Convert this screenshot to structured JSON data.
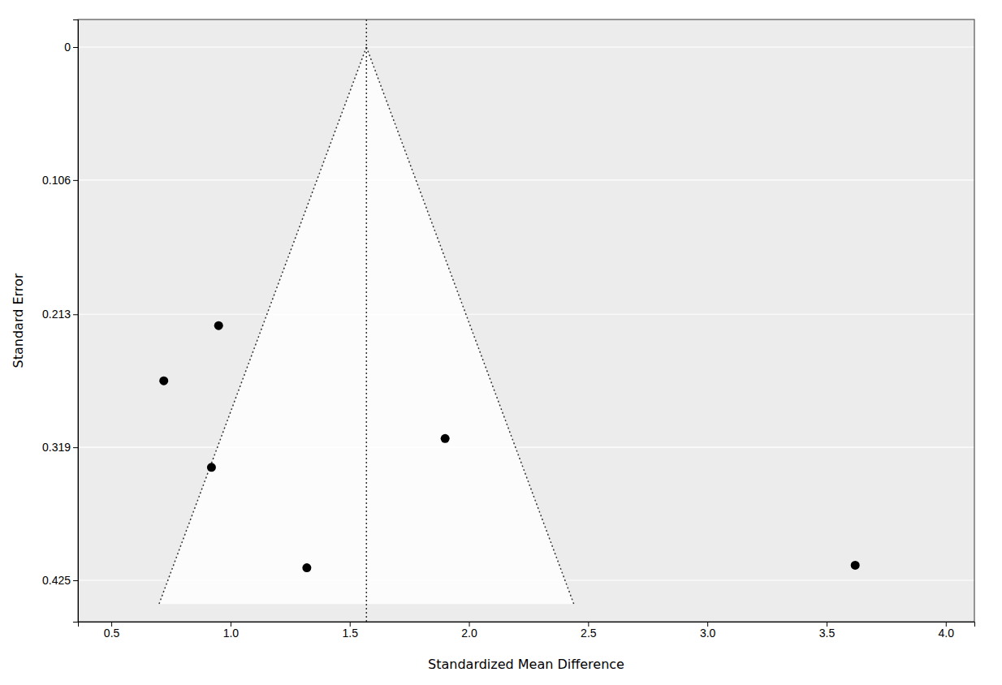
{
  "chart_data": {
    "type": "scatter",
    "x": [
      0.72,
      0.95,
      0.92,
      1.32,
      1.9,
      3.62
    ],
    "values": [
      0.266,
      0.222,
      0.335,
      0.415,
      0.312,
      0.413
    ],
    "funnel": {
      "apex_x": 1.57,
      "apex_y": 0.0,
      "left_base_x": 0.7,
      "right_base_x": 2.44,
      "base_se": 0.444
    },
    "xlim": [
      0.36,
      4.12
    ],
    "ylim": [
      0.458,
      -0.022
    ],
    "xticks": [
      0.5,
      {
        "value": 1.0,
        "label": "1.0"
      },
      1.5,
      {
        "value": 2.0,
        "label": "2.0"
      },
      2.5,
      {
        "value": 3.0,
        "label": "3.0"
      },
      3.5,
      {
        "value": 4.0,
        "label": "4.0"
      }
    ],
    "yticks": [
      0,
      0.106,
      0.213,
      0.319,
      0.425
    ],
    "xlabel": "Standardized Mean Difference",
    "ylabel": "Standard Error",
    "color": "#000000",
    "grid": true
  }
}
